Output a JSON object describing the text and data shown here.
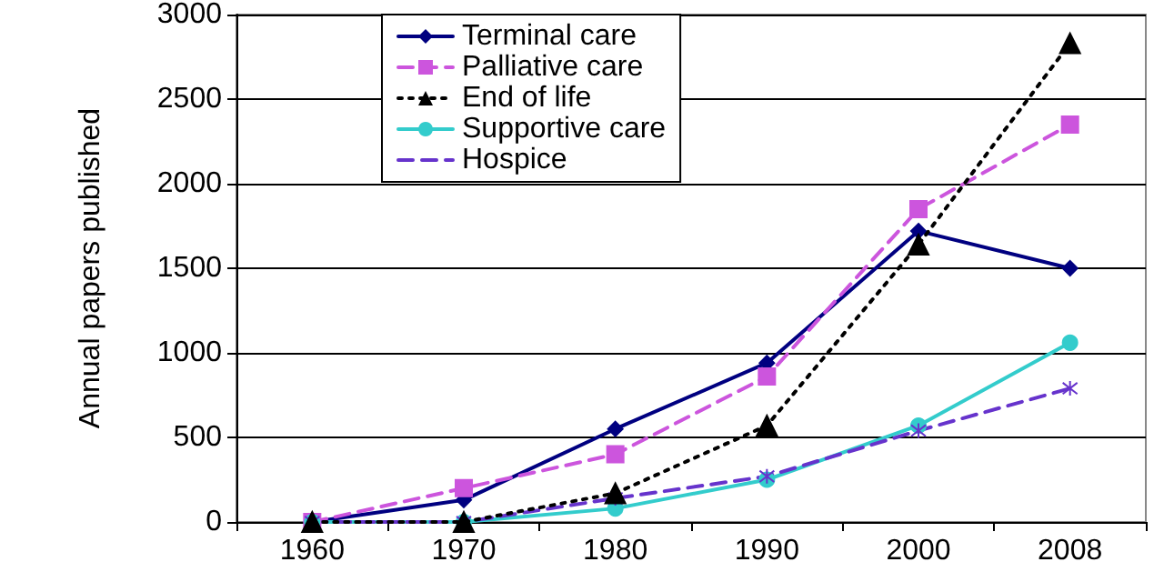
{
  "chart_data": {
    "type": "line",
    "ylabel": "Annual papers published",
    "categories": [
      "1960",
      "1970",
      "1980",
      "1990",
      "2000",
      "2008"
    ],
    "series": [
      {
        "name": "Terminal care",
        "color": "#000080",
        "marker": "diamond",
        "line_style": "solid",
        "values": [
          0,
          130,
          550,
          940,
          1720,
          1500
        ]
      },
      {
        "name": "Palliative care",
        "color": "#cc55dd",
        "marker": "square",
        "line_style": "dashed",
        "values": [
          0,
          200,
          400,
          860,
          1850,
          2350
        ]
      },
      {
        "name": "End of life",
        "color": "#000000",
        "marker": "triangle",
        "line_style": "dotted",
        "values": [
          0,
          0,
          170,
          570,
          1640,
          2830
        ]
      },
      {
        "name": "Supportive care",
        "color": "#33cccc",
        "marker": "circle",
        "line_style": "solid",
        "values": [
          0,
          0,
          80,
          250,
          570,
          1060
        ]
      },
      {
        "name": "Hospice",
        "color": "#6633cc",
        "marker": "cross",
        "line_style": "dashed",
        "values": [
          0,
          0,
          140,
          270,
          540,
          790
        ]
      }
    ],
    "ylim": [
      0,
      3000
    ],
    "yticks": [
      0,
      500,
      1000,
      1500,
      2000,
      2500,
      3000
    ],
    "grid": "y",
    "legend": "top left"
  }
}
